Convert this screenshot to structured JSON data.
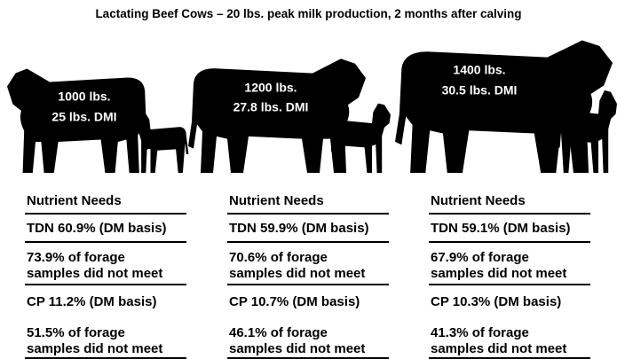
{
  "title": "Lactating Beef Cows – 20 lbs. peak milk production, 2 months after calving",
  "columns": [
    {
      "weight": "1000 lbs.",
      "dmi": "25 lbs. DMI",
      "heading": "Nutrient Needs",
      "tdn": "TDN 60.9% (DM basis)",
      "tdn_note": [
        "73.9% of forage",
        "samples did not meet"
      ],
      "cp": "CP 11.2% (DM basis)",
      "cp_note": [
        "51.5% of forage",
        "samples did not meet"
      ]
    },
    {
      "weight": "1200 lbs.",
      "dmi": "27.8 lbs. DMI",
      "heading": "Nutrient Needs",
      "tdn": "TDN 59.9% (DM basis)",
      "tdn_note": [
        "70.6% of forage",
        "samples did not meet"
      ],
      "cp": "CP 10.7% (DM basis)",
      "cp_note": [
        "46.1% of forage",
        "samples did not meet"
      ]
    },
    {
      "weight": "1400 lbs.",
      "dmi": "30.5 lbs. DMI",
      "heading": "Nutrient Needs",
      "tdn": "TDN 59.1% (DM basis)",
      "tdn_note": [
        "67.9% of forage",
        "samples did not meet"
      ],
      "cp": "CP 10.3% (DM basis)",
      "cp_note": [
        "41.3% of forage",
        "samples did not meet"
      ]
    }
  ]
}
